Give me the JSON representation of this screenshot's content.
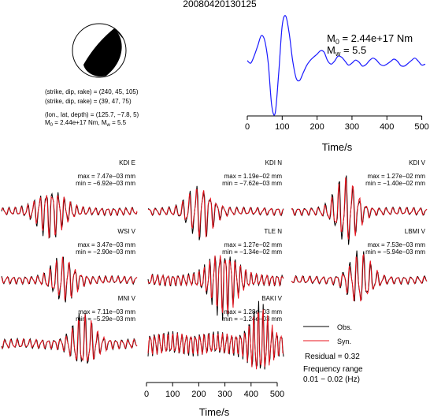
{
  "header": {
    "event_id": "20080420130125"
  },
  "mechanism": {
    "plane1": "(strike, dip, rake) = (240, 45, 105)",
    "plane2": "(strike, dip, rake) = (39, 47, 75)",
    "location": "(lon., lat, depth) = (125.7, −7.8, 5)",
    "m0_label": "M",
    "m0_sub": "0",
    "m0_value": " = 2.44e+17 Nm, M",
    "mw_sub": "w",
    "mw_value": " = 5.5"
  },
  "stf_panel": {
    "m0_main": "M",
    "m0_sub": "0",
    "m0_text": " = 2.44e+17 Nm",
    "mw_main": "M",
    "mw_sub": "w",
    "mw_text": " = 5.5",
    "xlabel": "Time/s",
    "xticks": [
      "0",
      "100",
      "200",
      "300",
      "400",
      "500"
    ]
  },
  "bottom_axis": {
    "xlabel": "Time/s",
    "xticks": [
      "0",
      "100",
      "200",
      "300",
      "400",
      "500"
    ]
  },
  "legend": {
    "obs": "Obs.",
    "syn": "Syn.",
    "residual": "Residual = 0.32",
    "freq_label": "Frequency range",
    "freq_value": "0.01 − 0.02 (Hz)"
  },
  "colors": {
    "observed": "#000000",
    "synthetic": "#e8141e",
    "stf": "#1a1aff"
  },
  "chart_data": [
    {
      "type": "line",
      "title": "",
      "xlabel": "Time/s",
      "xlim": [
        0,
        510
      ],
      "x": [
        0,
        10,
        20,
        30,
        40,
        50,
        60,
        70,
        80,
        90,
        100,
        110,
        120,
        130,
        140,
        150,
        160,
        170,
        180,
        190,
        200,
        210,
        220,
        230,
        240,
        250,
        260,
        270,
        280,
        290,
        300,
        310,
        320,
        330,
        340,
        350,
        360,
        370,
        380,
        390,
        400,
        410,
        420,
        430,
        440,
        450,
        460,
        470,
        480,
        490,
        500,
        510
      ],
      "series": [
        {
          "values": [
            0.05,
            0.0,
            0.15,
            0.35,
            0.55,
            0.45,
            0.0,
            -0.85,
            -1.0,
            -0.2,
            0.75,
            0.95,
            0.6,
            0.05,
            -0.3,
            -0.35,
            -0.2,
            -0.05,
            0.05,
            0.12,
            0.18,
            0.25,
            0.22,
            0.05,
            -0.02,
            0.04,
            0.14,
            0.12,
            0.04,
            -0.04,
            0.0,
            0.06,
            0.02,
            -0.06,
            -0.03,
            0.05,
            0.1,
            0.06,
            -0.02,
            -0.05,
            -0.02,
            0.03,
            0.08,
            0.04,
            -0.05,
            -0.06,
            -0.01,
            0.05,
            0.1,
            0.04,
            -0.04,
            -0.02
          ]
        }
      ]
    },
    {
      "type": "line",
      "title": "KDI E",
      "max": "max = 7.47e−03 mm",
      "min": "min = −6.92e−03 mm",
      "series": [
        {
          "name": "Obs."
        },
        {
          "name": "Syn."
        }
      ]
    },
    {
      "type": "line",
      "title": "KDI N",
      "max": "max = 1.19e−02 mm",
      "min": "min = −7.62e−03 mm",
      "series": [
        {
          "name": "Obs."
        },
        {
          "name": "Syn."
        }
      ]
    },
    {
      "type": "line",
      "title": "KDI V",
      "max": "max = 1.27e−02 mm",
      "min": "min = −1.40e−02 mm",
      "series": [
        {
          "name": "Obs."
        },
        {
          "name": "Syn."
        }
      ]
    },
    {
      "type": "line",
      "title": "WSI V",
      "max": "max = 3.47e−03 mm",
      "min": "min = −2.90e−03 mm",
      "series": [
        {
          "name": "Obs."
        },
        {
          "name": "Syn."
        }
      ]
    },
    {
      "type": "line",
      "title": "TLE N",
      "max": "max = 1.27e−02 mm",
      "min": "min = −1.34e−02 mm",
      "series": [
        {
          "name": "Obs."
        },
        {
          "name": "Syn."
        }
      ]
    },
    {
      "type": "line",
      "title": "LBMI V",
      "max": "max = 7.53e−03 mm",
      "min": "min = −5.94e−03 mm",
      "series": [
        {
          "name": "Obs."
        },
        {
          "name": "Syn."
        }
      ]
    },
    {
      "type": "line",
      "title": "MNI V",
      "max": "max = 7.11e−03 mm",
      "min": "min = −5.29e−03 mm",
      "series": [
        {
          "name": "Obs."
        },
        {
          "name": "Syn."
        }
      ]
    },
    {
      "type": "line",
      "title": "BAKI V",
      "max": "max = 1.28e−03 mm",
      "min": "min = −1.24e−03 mm",
      "series": [
        {
          "name": "Obs."
        },
        {
          "name": "Syn."
        }
      ]
    }
  ]
}
